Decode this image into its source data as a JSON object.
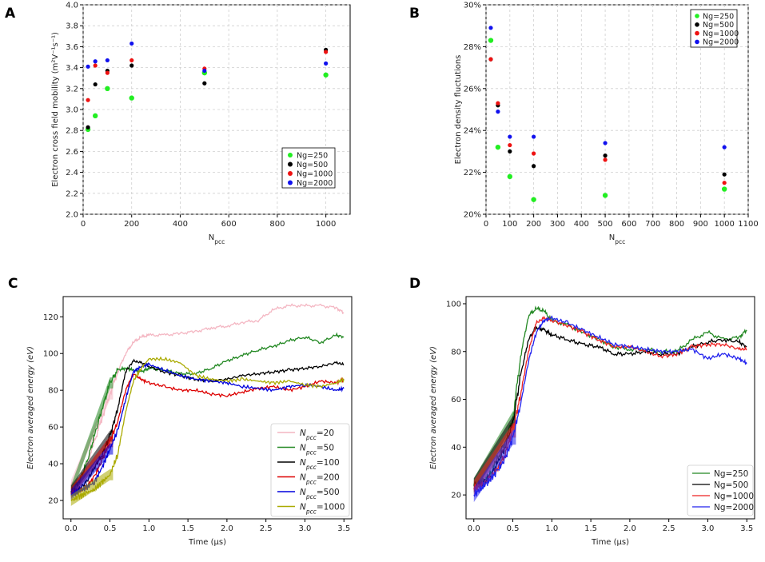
{
  "panel_letters": {
    "A": "A",
    "B": "B",
    "C": "C",
    "D": "D"
  },
  "panel_c_legend_sub": "pcc",
  "panel_c_legend_prefix": "N",
  "colors": {
    "Ng=250": "#22ee22",
    "Ng=500": "#000000",
    "Ng=1000": "#ee1111",
    "Ng=2000": "#1111ee"
  },
  "chart_data": [
    {
      "panel": "A",
      "type": "scatter",
      "xlabel": "N",
      "xlabel_sub": "pcc",
      "ylabel": "Electron cross field mobility (m²V⁻¹s⁻¹)",
      "xlim": [
        0,
        1100
      ],
      "ylim": [
        2.0,
        4.0
      ],
      "xticks": [
        "0",
        "200",
        "400",
        "600",
        "800",
        "1000"
      ],
      "yticks": [
        "2.0",
        "2.2",
        "2.4",
        "2.6",
        "2.8",
        "3.0",
        "3.2",
        "3.4",
        "3.6",
        "3.8",
        "4.0"
      ],
      "legend_position": "lower-right",
      "series": [
        {
          "name": "Ng=250",
          "x": [
            20,
            50,
            100,
            200,
            500,
            1000
          ],
          "y": [
            2.81,
            2.94,
            3.2,
            3.11,
            3.35,
            3.33
          ]
        },
        {
          "name": "Ng=500",
          "x": [
            20,
            50,
            100,
            200,
            500,
            1000
          ],
          "y": [
            2.83,
            3.24,
            3.37,
            3.42,
            3.25,
            3.57
          ]
        },
        {
          "name": "Ng=1000",
          "x": [
            20,
            50,
            100,
            200,
            500,
            1000
          ],
          "y": [
            3.09,
            3.42,
            3.35,
            3.47,
            3.39,
            3.55
          ]
        },
        {
          "name": "Ng=2000",
          "x": [
            20,
            50,
            100,
            200,
            500,
            1000
          ],
          "y": [
            3.41,
            3.46,
            3.47,
            3.63,
            3.37,
            3.44
          ]
        }
      ]
    },
    {
      "panel": "B",
      "type": "scatter",
      "xlabel": "N",
      "xlabel_sub": "pcc",
      "ylabel": "Electron density fluctutions",
      "xlim": [
        0,
        1100
      ],
      "ylim": [
        20,
        30
      ],
      "xticks": [
        "0",
        "100",
        "200",
        "300",
        "400",
        "500",
        "600",
        "700",
        "800",
        "900",
        "1000",
        "1100"
      ],
      "yticks": [
        "20%",
        "22%",
        "24%",
        "26%",
        "28%",
        "30%"
      ],
      "legend_position": "top-right",
      "series": [
        {
          "name": "Ng=250",
          "x": [
            20,
            50,
            100,
            200,
            500,
            1000
          ],
          "y": [
            28.3,
            23.2,
            21.8,
            20.7,
            20.9,
            21.2
          ]
        },
        {
          "name": "Ng=500",
          "x": [
            20,
            50,
            100,
            200,
            500,
            1000
          ],
          "y": [
            27.4,
            25.2,
            23.0,
            22.3,
            22.8,
            21.9
          ]
        },
        {
          "name": "Ng=1000",
          "x": [
            20,
            50,
            100,
            200,
            500,
            1000
          ],
          "y": [
            27.4,
            25.3,
            23.3,
            22.9,
            22.6,
            21.5
          ]
        },
        {
          "name": "Ng=2000",
          "x": [
            20,
            50,
            100,
            200,
            500,
            1000
          ],
          "y": [
            28.9,
            24.9,
            23.7,
            23.7,
            23.4,
            23.2
          ]
        }
      ]
    },
    {
      "panel": "C",
      "type": "line",
      "xlabel": "Time (μs)",
      "ylabel": "Electron averaged energy (eV)",
      "xlim": [
        -0.1,
        3.6
      ],
      "ylim": [
        10,
        131
      ],
      "xticks": [
        "0.0",
        "0.5",
        "1.0",
        "1.5",
        "2.0",
        "2.5",
        "3.0",
        "3.5"
      ],
      "yticks": [
        "20",
        "40",
        "60",
        "80",
        "100",
        "120"
      ],
      "legend_position": "lower-right",
      "series": [
        {
          "name": "20",
          "color": "#f4b6c2",
          "x": [
            0,
            0.1,
            0.2,
            0.3,
            0.4,
            0.5,
            0.6,
            0.7,
            0.8,
            0.9,
            1.0,
            1.2,
            1.4,
            1.6,
            1.8,
            2.0,
            2.2,
            2.4,
            2.6,
            2.8,
            3.0,
            3.2,
            3.4,
            3.5
          ],
          "y": [
            28,
            31,
            38,
            52,
            65,
            78,
            90,
            100,
            106,
            109,
            110,
            110,
            111,
            112,
            114,
            115,
            117,
            118,
            124,
            126,
            126,
            126,
            125,
            122
          ]
        },
        {
          "name": "50",
          "color": "#228822",
          "x": [
            0,
            0.1,
            0.2,
            0.3,
            0.4,
            0.5,
            0.6,
            0.7,
            0.8,
            0.9,
            1.0,
            1.2,
            1.4,
            1.6,
            1.8,
            2.0,
            2.2,
            2.4,
            2.6,
            2.8,
            3.0,
            3.2,
            3.4,
            3.5
          ],
          "y": [
            25,
            30,
            40,
            55,
            70,
            84,
            91,
            92,
            91,
            90,
            92,
            91,
            89,
            89,
            92,
            96,
            99,
            102,
            104,
            107,
            109,
            106,
            110,
            109
          ]
        },
        {
          "name": "100",
          "color": "#000000",
          "x": [
            0,
            0.1,
            0.2,
            0.3,
            0.4,
            0.5,
            0.6,
            0.7,
            0.8,
            0.9,
            1.0,
            1.2,
            1.4,
            1.6,
            1.8,
            2.0,
            2.2,
            2.4,
            2.6,
            2.8,
            3.0,
            3.2,
            3.4,
            3.5
          ],
          "y": [
            25,
            26,
            30,
            38,
            45,
            55,
            70,
            90,
            96,
            95,
            93,
            90,
            88,
            86,
            85,
            86,
            88,
            89,
            90,
            91,
            92,
            93,
            95,
            94
          ]
        },
        {
          "name": "200",
          "color": "#dd0000",
          "x": [
            0,
            0.1,
            0.2,
            0.3,
            0.4,
            0.5,
            0.6,
            0.7,
            0.8,
            0.9,
            1.0,
            1.2,
            1.4,
            1.6,
            1.8,
            2.0,
            2.2,
            2.4,
            2.6,
            2.8,
            3.0,
            3.2,
            3.4,
            3.5
          ],
          "y": [
            24,
            25,
            27,
            33,
            42,
            52,
            63,
            80,
            89,
            86,
            84,
            82,
            80,
            80,
            78,
            77,
            79,
            81,
            82,
            80,
            82,
            85,
            84,
            86
          ]
        },
        {
          "name": "500",
          "color": "#0000dd",
          "x": [
            0,
            0.1,
            0.2,
            0.3,
            0.4,
            0.5,
            0.6,
            0.7,
            0.8,
            0.9,
            1.0,
            1.2,
            1.4,
            1.6,
            1.8,
            2.0,
            2.2,
            2.4,
            2.6,
            2.8,
            3.0,
            3.2,
            3.4,
            3.5
          ],
          "y": [
            23,
            25,
            27,
            30,
            38,
            48,
            58,
            75,
            90,
            93,
            94,
            91,
            88,
            86,
            85,
            84,
            82,
            81,
            80,
            82,
            83,
            82,
            80,
            81
          ]
        },
        {
          "name": "1000",
          "color": "#aaaa00",
          "x": [
            0,
            0.1,
            0.2,
            0.3,
            0.4,
            0.5,
            0.6,
            0.7,
            0.8,
            0.9,
            1.0,
            1.2,
            1.4,
            1.6,
            1.8,
            2.0,
            2.2,
            2.4,
            2.6,
            2.8,
            3.0,
            3.2,
            3.4,
            3.5
          ],
          "y": [
            20,
            22,
            24,
            26,
            30,
            34,
            45,
            68,
            85,
            92,
            97,
            97,
            95,
            88,
            86,
            85,
            86,
            85,
            84,
            85,
            83,
            82,
            84,
            86
          ]
        }
      ]
    },
    {
      "panel": "D",
      "type": "line",
      "xlabel": "Time (μs)",
      "ylabel": "Electron averaged energy (eV)",
      "xlim": [
        -0.1,
        3.6
      ],
      "ylim": [
        10,
        103
      ],
      "xticks": [
        "0.0",
        "0.5",
        "1.0",
        "1.5",
        "2.0",
        "2.5",
        "3.0",
        "3.5"
      ],
      "yticks": [
        "20",
        "40",
        "60",
        "80",
        "100"
      ],
      "legend_position": "lower-right",
      "series": [
        {
          "name": "Ng=250",
          "color": "#228822",
          "x": [
            0,
            0.1,
            0.2,
            0.3,
            0.4,
            0.5,
            0.6,
            0.7,
            0.8,
            0.9,
            1.0,
            1.2,
            1.4,
            1.6,
            1.8,
            2.0,
            2.2,
            2.4,
            2.6,
            2.8,
            3.0,
            3.2,
            3.4,
            3.5
          ],
          "y": [
            24,
            25,
            28,
            35,
            42,
            52,
            78,
            95,
            98,
            97,
            93,
            91,
            88,
            85,
            82,
            81,
            81,
            80,
            80,
            85,
            88,
            85,
            86,
            89
          ]
        },
        {
          "name": "Ng=500",
          "color": "#000000",
          "x": [
            0,
            0.1,
            0.2,
            0.3,
            0.4,
            0.5,
            0.6,
            0.7,
            0.8,
            0.9,
            1.0,
            1.2,
            1.4,
            1.6,
            1.8,
            2.0,
            2.2,
            2.4,
            2.6,
            2.8,
            3.0,
            3.2,
            3.4,
            3.5
          ],
          "y": [
            24,
            25,
            27,
            33,
            40,
            50,
            70,
            85,
            90,
            89,
            87,
            85,
            83,
            82,
            79,
            79,
            80,
            79,
            79,
            82,
            84,
            85,
            84,
            82
          ]
        },
        {
          "name": "Ng=1000",
          "color": "#ee2222",
          "x": [
            0,
            0.1,
            0.2,
            0.3,
            0.4,
            0.5,
            0.6,
            0.7,
            0.8,
            0.9,
            1.0,
            1.2,
            1.4,
            1.6,
            1.8,
            2.0,
            2.2,
            2.4,
            2.6,
            2.8,
            3.0,
            3.2,
            3.4,
            3.5
          ],
          "y": [
            23,
            24,
            27,
            31,
            37,
            47,
            62,
            80,
            92,
            94,
            93,
            91,
            88,
            85,
            82,
            82,
            80,
            78,
            79,
            82,
            83,
            83,
            81,
            81
          ]
        },
        {
          "name": "Ng=2000",
          "color": "#2222ee",
          "x": [
            0,
            0.1,
            0.2,
            0.3,
            0.4,
            0.5,
            0.6,
            0.7,
            0.8,
            0.9,
            1.0,
            1.2,
            1.4,
            1.6,
            1.8,
            2.0,
            2.2,
            2.4,
            2.6,
            2.8,
            3.0,
            3.2,
            3.4,
            3.5
          ],
          "y": [
            20,
            23,
            26,
            30,
            35,
            44,
            58,
            76,
            88,
            93,
            94,
            92,
            89,
            86,
            83,
            82,
            81,
            80,
            80,
            81,
            77,
            79,
            77,
            75
          ]
        }
      ]
    }
  ]
}
